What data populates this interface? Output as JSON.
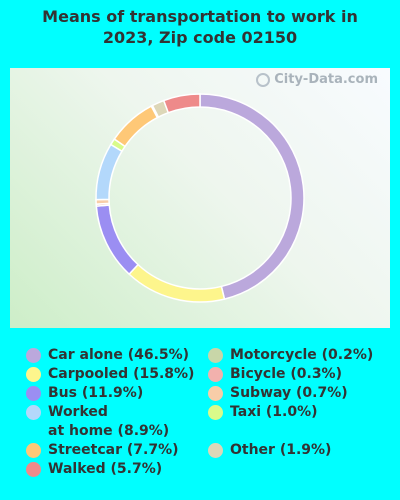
{
  "title_line1": "Means of transportation to work in",
  "title_line2": "2023, Zip code 02150",
  "watermark": "City-Data.com",
  "chart_data": {
    "type": "pie",
    "title": "Means of transportation to work in 2023, Zip code 02150",
    "slices": [
      {
        "label": "Car alone (46.5%)",
        "value": 46.5,
        "color": "#bba8dc"
      },
      {
        "label": "Carpooled (15.8%)",
        "value": 15.8,
        "color": "#fdf58c"
      },
      {
        "label": "Bus (11.9%)",
        "value": 11.9,
        "color": "#9b8ef2"
      },
      {
        "label": "Bicycle (0.3%)",
        "value": 0.3,
        "color": "#f2b1ad"
      },
      {
        "label": "Subway (0.7%)",
        "value": 0.7,
        "color": "#f8cda8"
      },
      {
        "label": "Worked at home (8.9%)",
        "value": 8.9,
        "color": "#b3d8fb"
      },
      {
        "label": "Taxi (1.0%)",
        "value": 1.0,
        "color": "#d9fb8a"
      },
      {
        "label": "Streetcar (7.7%)",
        "value": 7.7,
        "color": "#fec877"
      },
      {
        "label": "Motorcycle (0.2%)",
        "value": 0.2,
        "color": "#c8d6a8"
      },
      {
        "label": "Other (1.9%)",
        "value": 1.9,
        "color": "#ddd7b8"
      },
      {
        "label": "Walked (5.7%)",
        "value": 5.7,
        "color": "#ee8a8a"
      }
    ]
  },
  "legend": {
    "left": [
      {
        "label": "Car alone (46.5%)",
        "color": "#bba8dc"
      },
      {
        "label": "Carpooled (15.8%)",
        "color": "#fdf58c"
      },
      {
        "label": "Bus (11.9%)",
        "color": "#9b8ef2"
      },
      {
        "label": "Worked",
        "label2": "at home (8.9%)",
        "color": "#b3d8fb"
      },
      {
        "label": "Streetcar (7.7%)",
        "color": "#fec877"
      },
      {
        "label": "Walked (5.7%)",
        "color": "#ee8a8a"
      }
    ],
    "right": [
      {
        "label": "Motorcycle (0.2%)",
        "color": "#c8d6a8"
      },
      {
        "label": "Bicycle (0.3%)",
        "color": "#f2b1ad"
      },
      {
        "label": "Subway (0.7%)",
        "color": "#f8cda8"
      },
      {
        "label": "Taxi (1.0%)",
        "color": "#d9fb8a"
      },
      {
        "label": "",
        "color": ""
      },
      {
        "label": "Other (1.9%)",
        "color": "#ddd7b8"
      }
    ]
  }
}
